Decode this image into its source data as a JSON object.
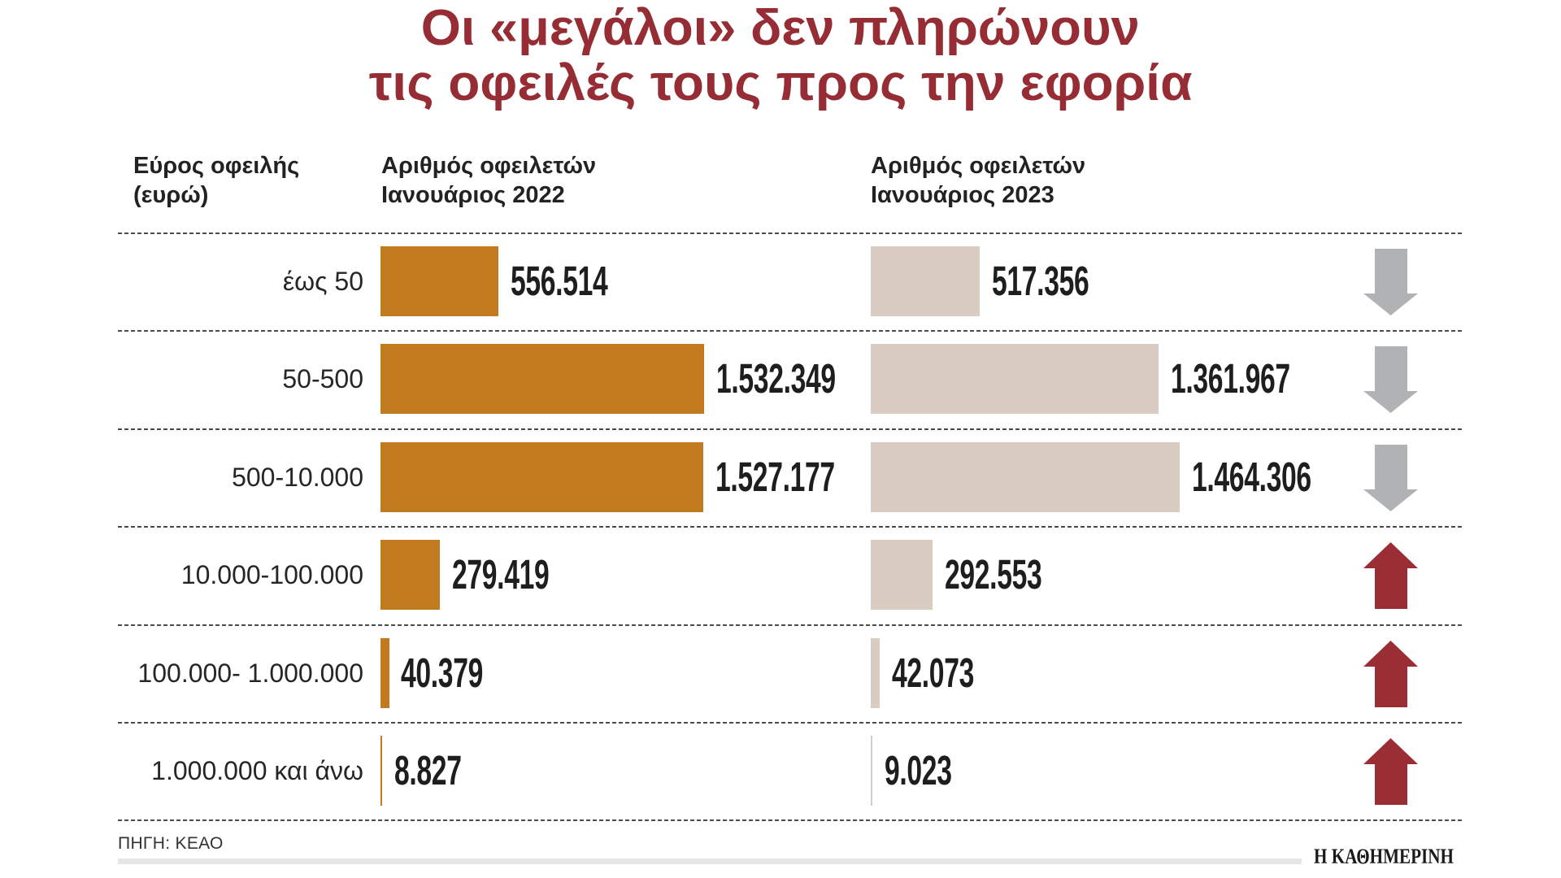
{
  "title": {
    "line1": "Οι «μεγάλοι» δεν πληρώνουν",
    "line2": "τις οφειλές τους προς την εφορία"
  },
  "headers": {
    "range": [
      "Εύρος οφειλής",
      "(ευρώ)"
    ],
    "col2022": [
      "Αριθμός οφειλετών",
      "Ιανουάριος 2022"
    ],
    "col2023": [
      "Αριθμός οφειλετών",
      "Ιανουάριος 2023"
    ]
  },
  "footer": {
    "source": "ΠΗΓΗ: ΚΕΑΟ",
    "logo": "Η ΚΑΘΗΜΕΡΙΝΗ"
  },
  "colors": {
    "title": "#962d35",
    "bar2022": "#c27a1e",
    "bar2023": "#d9cdc1",
    "arrow_down": "#b1b2b4",
    "arrow_up": "#9b2d34"
  },
  "chart_data": {
    "type": "bar",
    "title": "Οι «μεγάλοι» δεν πληρώνουν τις οφειλές τους προς την εφορία",
    "xlabel": "",
    "ylabel": "Εύρος οφειλής (ευρώ)",
    "categories": [
      "έως 50",
      "50-500",
      "500-10.000",
      "10.000-100.000",
      "100.000- 1.000.000",
      "1.000.000 και άνω"
    ],
    "series": [
      {
        "name": "Αριθμός οφειλετών Ιανουάριος 2022",
        "values": [
          556514,
          1532349,
          1527177,
          279419,
          40379,
          8827
        ],
        "labels": [
          "556.514",
          "1.532.349",
          "1.527.177",
          "279.419",
          "40.379",
          "8.827"
        ]
      },
      {
        "name": "Αριθμός οφειλετών Ιανουάριος 2023",
        "values": [
          517356,
          1361967,
          1464306,
          292553,
          42073,
          9023
        ],
        "labels": [
          "517.356",
          "1.361.967",
          "1.464.306",
          "292.553",
          "42.073",
          "9.023"
        ]
      }
    ],
    "trend": [
      "down",
      "down",
      "down",
      "up",
      "up",
      "up"
    ],
    "xlim": [
      0,
      1532349
    ],
    "grid": false,
    "legend": "column headers at top"
  }
}
